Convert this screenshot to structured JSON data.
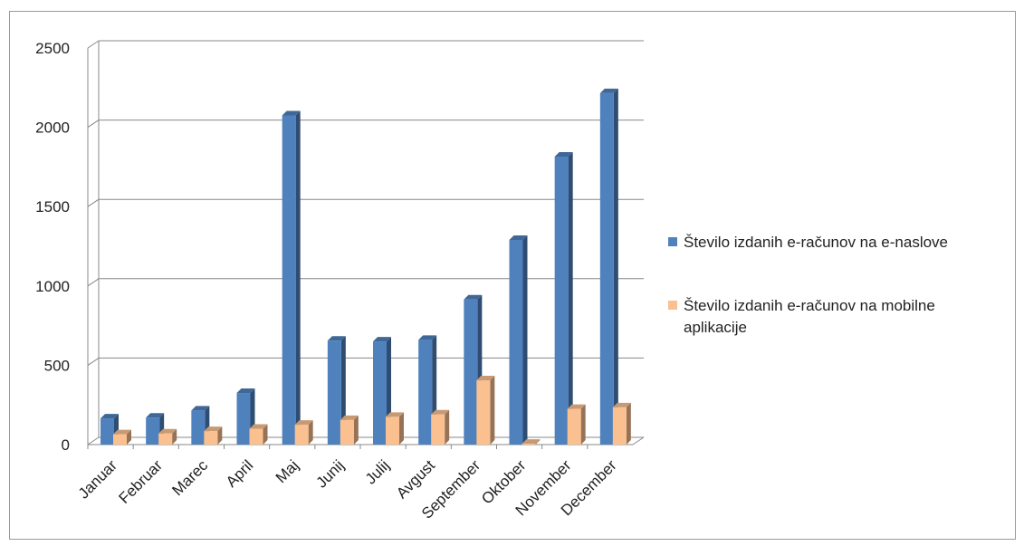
{
  "chart_data": {
    "type": "bar",
    "categories": [
      "Januar",
      "Februar",
      "Marec",
      "April",
      "Maj",
      "Junij",
      "Julij",
      "Avgust",
      "September",
      "Oktober",
      "November",
      "December"
    ],
    "series": [
      {
        "name": "Število izdanih e-računov na e-naslove",
        "color": "#4f81bd",
        "values": [
          165,
          170,
          215,
          325,
          2075,
          655,
          650,
          660,
          915,
          1290,
          1815,
          2215
        ]
      },
      {
        "name": "Število izdanih e-računov na mobilne aplikacije",
        "legend_lines": [
          "Število izdanih e-računov na mobilne",
          "aplikacije"
        ],
        "color": "#fac090",
        "values": [
          65,
          70,
          85,
          100,
          125,
          155,
          175,
          190,
          405,
          5,
          225,
          235
        ]
      }
    ],
    "yticks": [
      "0",
      "500",
      "1000",
      "1500",
      "2000",
      "2500"
    ],
    "ylim": [
      0,
      2500
    ],
    "grid": true,
    "legend_position": "right"
  }
}
